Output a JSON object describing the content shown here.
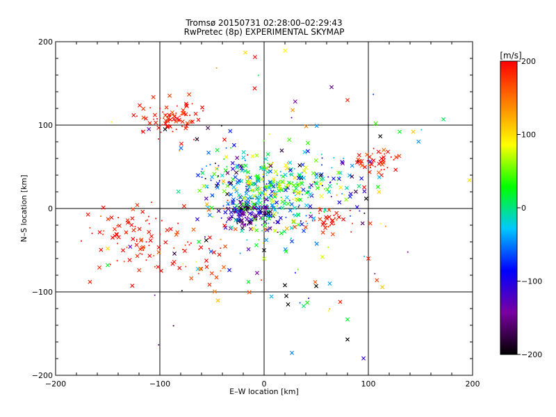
{
  "chart_data": {
    "type": "scatter",
    "title": "Tromsø 20150731 02:28:00–02:29:43",
    "subtitle": "RwPretec (8p) EXPERIMENTAL SKYMAP",
    "xlabel": "E–W location [km]",
    "ylabel": "N–S location [km]",
    "xlim": [
      -200,
      200
    ],
    "ylim": [
      -200,
      200
    ],
    "xticks": [
      -200,
      -100,
      0,
      100,
      200
    ],
    "yticks": [
      -200,
      -100,
      0,
      100,
      200
    ],
    "xtick_labels": [
      "−200",
      "−100",
      "0",
      "100",
      "200"
    ],
    "ytick_labels": [
      "−200",
      "−100",
      "0",
      "100",
      "200"
    ],
    "grid": true,
    "colorbar": {
      "label": "[m/s]",
      "range": [
        -200,
        200
      ],
      "ticks": [
        200,
        100,
        0,
        -100,
        -200
      ],
      "tick_labels": [
        "200",
        "100",
        "0",
        "−100",
        "−200"
      ],
      "colors": [
        "#000000",
        "#7a00a0",
        "#0000ff",
        "#00c8ff",
        "#00ff00",
        "#ffff00",
        "#ff8000",
        "#ff0000"
      ]
    },
    "markers": {
      "cross": "x",
      "dot": "."
    },
    "clusters": [
      {
        "cx": -90,
        "cy": 110,
        "sx": 14,
        "sy": 10,
        "n": 85,
        "v": 190,
        "vs": 15
      },
      {
        "cx": 110,
        "cy": 57,
        "sx": 10,
        "sy": 8,
        "n": 45,
        "v": 185,
        "vs": 20
      },
      {
        "cx": -125,
        "cy": -35,
        "sx": 22,
        "sy": 18,
        "n": 85,
        "v": 190,
        "vs": 15
      },
      {
        "cx": 60,
        "cy": -15,
        "sx": 10,
        "sy": 8,
        "n": 35,
        "v": 190,
        "vs": 15
      },
      {
        "cx": -15,
        "cy": -5,
        "sx": 12,
        "sy": 10,
        "n": 150,
        "v": -150,
        "vs": 40
      },
      {
        "cx": 5,
        "cy": 15,
        "sx": 25,
        "sy": 25,
        "n": 260,
        "v": -20,
        "vs": 50
      },
      {
        "cx": 15,
        "cy": 30,
        "sx": 20,
        "sy": 15,
        "n": 60,
        "v": 60,
        "vs": 40
      },
      {
        "cx": 65,
        "cy": 40,
        "sx": 20,
        "sy": 15,
        "n": 60,
        "v": -50,
        "vs": 60
      },
      {
        "cx": -40,
        "cy": 40,
        "sx": 15,
        "sy": 15,
        "n": 35,
        "v": -100,
        "vs": 80
      },
      {
        "cx": -60,
        "cy": -50,
        "sx": 30,
        "sy": 25,
        "n": 40,
        "v": 185,
        "vs": 20
      },
      {
        "cx": 0,
        "cy": 0,
        "sx": 70,
        "sy": 70,
        "n": 140,
        "v": 0,
        "vs": 150
      }
    ],
    "points": [
      {
        "x": -18,
        "y": 187,
        "v": 100,
        "m": "x"
      },
      {
        "x": -95,
        "y": 95,
        "v": -200,
        "m": "x"
      },
      {
        "x": 80,
        "y": 130,
        "v": 190,
        "m": "x"
      },
      {
        "x": 172,
        "y": 107,
        "v": 10,
        "m": "x"
      },
      {
        "x": 143,
        "y": 92,
        "v": 110,
        "m": "x"
      },
      {
        "x": -167,
        "y": -88,
        "v": 190,
        "m": "x"
      },
      {
        "x": -150,
        "y": -48,
        "v": 100,
        "m": "x"
      },
      {
        "x": -150,
        "y": -68,
        "v": 20,
        "m": "x"
      },
      {
        "x": -15,
        "y": -88,
        "v": 20,
        "m": "x"
      },
      {
        "x": 20,
        "y": -92,
        "v": -200,
        "m": "x"
      },
      {
        "x": 23,
        "y": -115,
        "v": -200,
        "m": "x"
      },
      {
        "x": 50,
        "y": -93,
        "v": -200,
        "m": "x"
      },
      {
        "x": 63,
        "y": -90,
        "v": -40,
        "m": "x"
      },
      {
        "x": 73,
        "y": -112,
        "v": 190,
        "m": "x"
      },
      {
        "x": 80,
        "y": -133,
        "v": 20,
        "m": "x"
      },
      {
        "x": 80,
        "y": -157,
        "v": -200,
        "m": "x"
      },
      {
        "x": 100,
        "y": -60,
        "v": 190,
        "m": "x"
      },
      {
        "x": 0,
        "y": -50,
        "v": -200,
        "m": "x"
      },
      {
        "x": -55,
        "y": -70,
        "v": 190,
        "m": "x"
      },
      {
        "x": -45,
        "y": 70,
        "v": 20,
        "m": "x"
      },
      {
        "x": 107,
        "y": 102,
        "v": 40,
        "m": "x"
      },
      {
        "x": 130,
        "y": 92,
        "v": 20,
        "m": "x"
      }
    ]
  }
}
